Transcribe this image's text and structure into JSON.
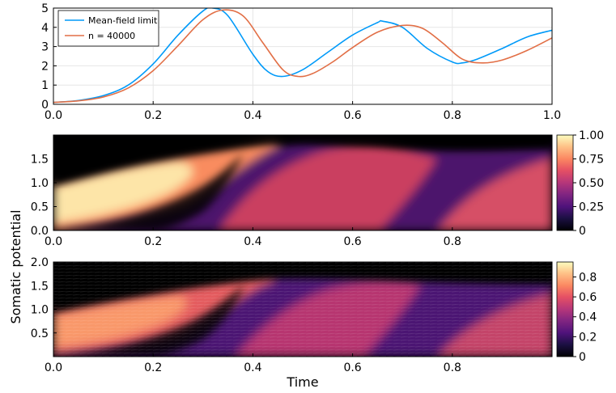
{
  "chart_data": [
    {
      "type": "line",
      "title": "",
      "xlabel": "",
      "ylabel": "",
      "xlim": [
        0,
        1
      ],
      "ylim": [
        0,
        5
      ],
      "x_ticks": [
        "0.0",
        "0.2",
        "0.4",
        "0.6",
        "0.8",
        "1.0"
      ],
      "y_ticks": [
        "0",
        "1",
        "2",
        "3",
        "4",
        "5"
      ],
      "grid": true,
      "legend": "top-left",
      "series": [
        {
          "name": "Mean-field limit",
          "color": "#009af9",
          "x": [
            0,
            0.05,
            0.1,
            0.15,
            0.2,
            0.25,
            0.3,
            0.32,
            0.35,
            0.4,
            0.43,
            0.46,
            0.5,
            0.55,
            0.6,
            0.65,
            0.66,
            0.7,
            0.75,
            0.8,
            0.82,
            0.85,
            0.9,
            0.95,
            1.0
          ],
          "y": [
            0.1,
            0.2,
            0.45,
            1.0,
            2.1,
            3.6,
            4.85,
            5.0,
            4.6,
            2.6,
            1.7,
            1.45,
            1.8,
            2.7,
            3.6,
            4.25,
            4.32,
            4.0,
            2.9,
            2.2,
            2.15,
            2.35,
            2.9,
            3.5,
            3.85
          ]
        },
        {
          "name": "n = 40000",
          "color": "#e26f46",
          "x": [
            0,
            0.05,
            0.1,
            0.15,
            0.2,
            0.25,
            0.3,
            0.34,
            0.38,
            0.42,
            0.46,
            0.49,
            0.52,
            0.56,
            0.6,
            0.65,
            0.7,
            0.74,
            0.78,
            0.82,
            0.86,
            0.9,
            0.95,
            1.0
          ],
          "y": [
            0.1,
            0.18,
            0.38,
            0.85,
            1.75,
            3.05,
            4.4,
            4.9,
            4.6,
            3.2,
            1.8,
            1.45,
            1.6,
            2.2,
            2.95,
            3.75,
            4.1,
            3.95,
            3.2,
            2.35,
            2.15,
            2.3,
            2.8,
            3.45
          ]
        }
      ]
    },
    {
      "type": "heatmap",
      "title": "",
      "xlabel": "",
      "ylabel": "",
      "xlim": [
        0,
        1
      ],
      "ylim": [
        0,
        2
      ],
      "x_ticks": [
        "0.0",
        "0.2",
        "0.4",
        "0.6",
        "0.8"
      ],
      "y_ticks": [
        "0.0",
        "0.5",
        "1.0",
        "1.5"
      ],
      "colorbar_ticks": [
        "0",
        "0.25",
        "0.50",
        "0.75",
        "1.00"
      ],
      "colorbar_range": [
        0,
        1.0
      ],
      "colormap": "magma"
    },
    {
      "type": "heatmap",
      "title": "",
      "xlabel": "Time",
      "ylabel": "",
      "xlim": [
        0,
        1
      ],
      "ylim": [
        0,
        2
      ],
      "x_ticks": [
        "0.0",
        "0.2",
        "0.4",
        "0.6",
        "0.8"
      ],
      "y_ticks": [
        "0.5",
        "1.0",
        "1.5",
        "2.0"
      ],
      "colorbar_ticks": [
        "0",
        "0.2",
        "0.4",
        "0.6",
        "0.8"
      ],
      "colorbar_range": [
        0,
        0.95
      ],
      "colormap": "magma"
    }
  ],
  "shared_ylabel": "Somatic potential",
  "colors": {
    "axis": "#000000",
    "grid": "#e6e6e6"
  }
}
